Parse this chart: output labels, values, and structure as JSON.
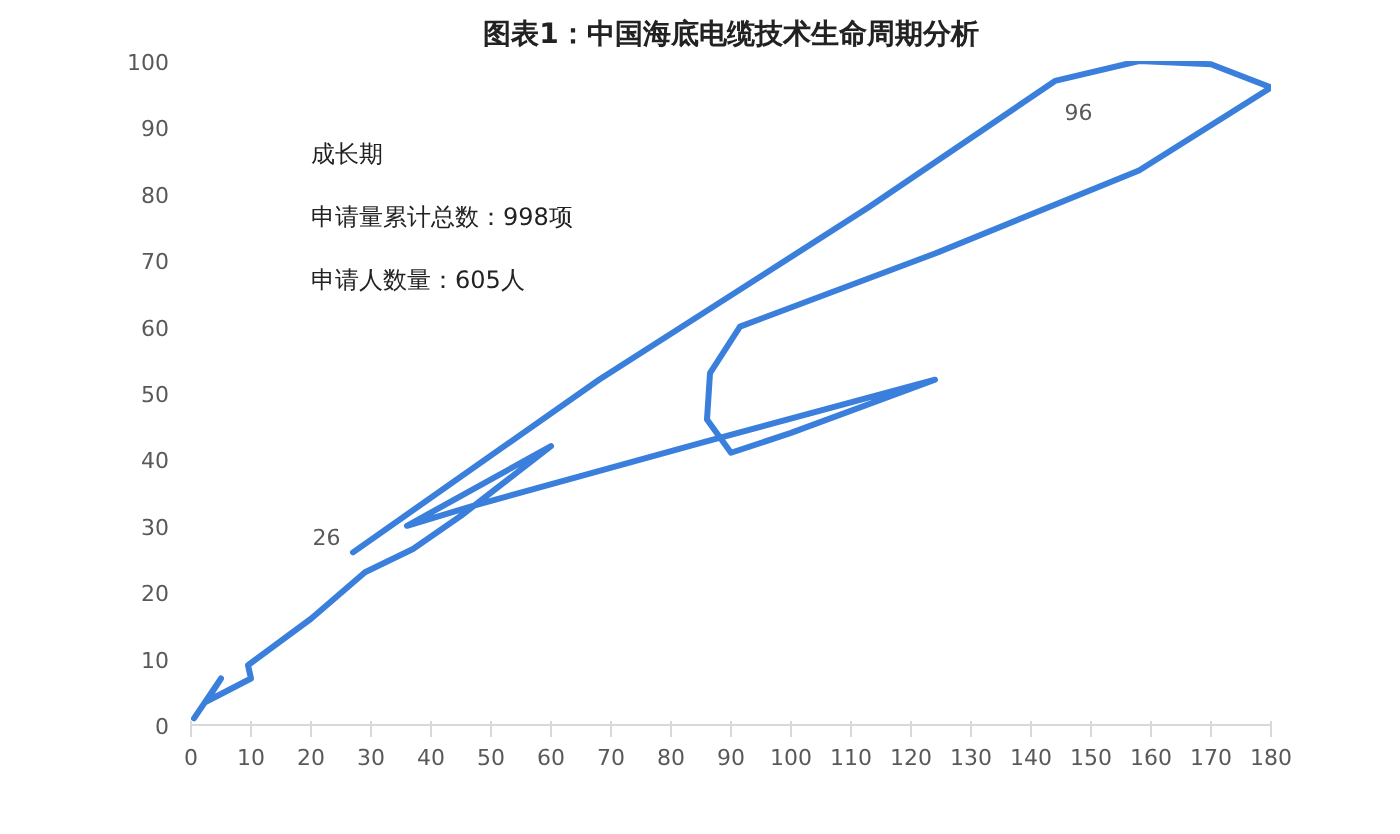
{
  "chart_data": {
    "type": "line",
    "title": "图表1：中国海底电缆技术生命周期分析",
    "annotations": [
      "成长期",
      "申请量累计总数：998项",
      "申请人数量：605人",
      {
        "text": "26",
        "x": 26.9,
        "y": 26.2
      },
      {
        "text": "96",
        "x": 143.6,
        "y": 97.2
      }
    ],
    "series": [
      {
        "color": "#3a7fdc",
        "x": [
          0.5,
          5,
          2.5,
          10,
          9.5,
          20,
          29,
          37,
          45,
          60,
          36,
          47,
          85,
          124,
          100,
          90,
          86,
          86.5,
          91.5,
          124,
          158,
          180,
          170,
          158,
          144,
          113,
          68,
          27
        ],
        "values": [
          1,
          7,
          3.5,
          7,
          9,
          16,
          23,
          26.5,
          31.5,
          42,
          30,
          33,
          42.5,
          52,
          44,
          41,
          46,
          53,
          60,
          71,
          83.5,
          96,
          99.5,
          100,
          97,
          78,
          52,
          26
        ]
      }
    ],
    "xlim": [
      0,
      180
    ],
    "xticks": [
      0,
      10,
      20,
      30,
      40,
      50,
      60,
      70,
      80,
      90,
      100,
      110,
      120,
      130,
      140,
      150,
      160,
      170,
      180
    ],
    "ylim": [
      0,
      100
    ],
    "yticks": [
      0,
      10,
      20,
      30,
      40,
      50,
      60,
      70,
      80,
      90,
      100
    ],
    "grid": false,
    "marker": "none",
    "line_style": "solid"
  }
}
